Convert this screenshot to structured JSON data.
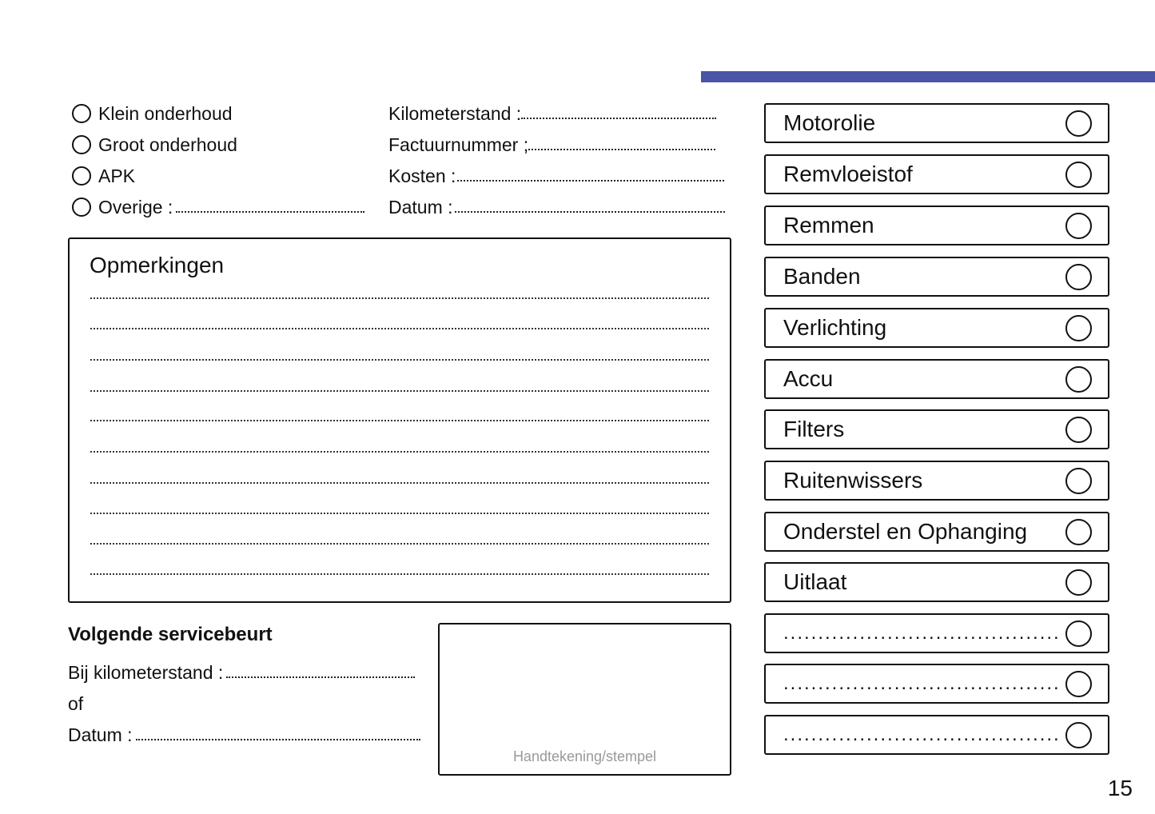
{
  "header": {
    "accent_color": "#4a55a8"
  },
  "service_type": {
    "options": [
      {
        "label": "Klein onderhoud",
        "icon": "radio-circle"
      },
      {
        "label": "Groot onderhoud",
        "icon": "radio-circle"
      },
      {
        "label": "APK",
        "icon": "radio-circle"
      },
      {
        "label": "Overige :",
        "icon": "radio-circle"
      }
    ]
  },
  "details": {
    "fields": [
      {
        "label": "Kilometerstand :"
      },
      {
        "label": "Factuurnummer ;"
      },
      {
        "label": "Kosten :"
      },
      {
        "label": "Datum :"
      }
    ]
  },
  "remarks": {
    "title": "Opmerkingen"
  },
  "next_service": {
    "title": "Volgende servicebeurt",
    "km_label": "Bij kilometerstand :",
    "or_label": "of",
    "date_label": "Datum :"
  },
  "stamp": {
    "label": "Handtekening/stempel"
  },
  "checklist": {
    "items": [
      {
        "label": "Motorolie"
      },
      {
        "label": "Remvloeistof"
      },
      {
        "label": "Remmen"
      },
      {
        "label": "Banden"
      },
      {
        "label": "Verlichting"
      },
      {
        "label": "Accu"
      },
      {
        "label": "Filters"
      },
      {
        "label": "Ruitenwissers"
      },
      {
        "label": "Onderstel en Ophanging"
      },
      {
        "label": "Uitlaat"
      },
      {
        "label": "........................................"
      },
      {
        "label": "........................................"
      },
      {
        "label": "........................................"
      }
    ]
  },
  "page_number": "15"
}
